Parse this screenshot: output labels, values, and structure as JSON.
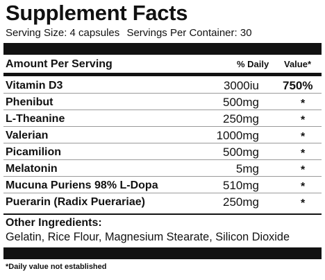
{
  "label": {
    "title": "Supplement Facts",
    "serving_size": "Serving Size: 4 capsules",
    "servings_per_container": "Servings Per Container: 30",
    "header": {
      "amount": "Amount Per Serving",
      "daily": "% Daily",
      "value": "Value*"
    },
    "rows": [
      {
        "name": "Vitamin D3",
        "amount": "3000iu",
        "value": "750%"
      },
      {
        "name": "Phenibut",
        "amount": "500mg",
        "value": "*"
      },
      {
        "name": "L-Theanine",
        "amount": "250mg",
        "value": "*"
      },
      {
        "name": "Valerian",
        "amount": "1000mg",
        "value": "*"
      },
      {
        "name": "Picamilion",
        "amount": "500mg",
        "value": "*"
      },
      {
        "name": "Melatonin",
        "amount": "5mg",
        "value": "*"
      },
      {
        "name": "Mucuna Puriens 98% L-Dopa",
        "amount": "510mg",
        "value": "*"
      },
      {
        "name": "Puerarin (Radix Puerariae)",
        "amount": "250mg",
        "value": "*"
      }
    ],
    "other_ingredients_label": "Other Ingredients:",
    "other_ingredients": "Gelatin, Rice Flour, Magnesium Stearate, Silicon Dioxide",
    "footnote": "*Daily value not established"
  }
}
